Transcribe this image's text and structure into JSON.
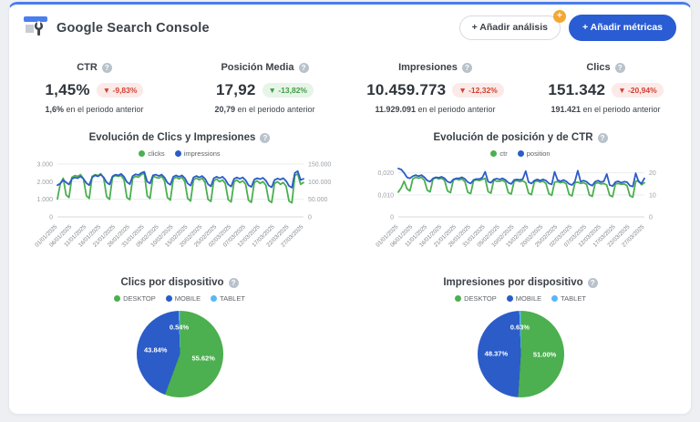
{
  "header": {
    "title": "Google Search Console",
    "add_analysis_label": "+ Añadir análisis",
    "add_analysis_badge": "+",
    "add_metrics_label": "+ Añadir métricas",
    "help_glyph": "?"
  },
  "colors": {
    "accent_blue": "#2a5cd3",
    "series_green": "#4caf50",
    "series_blue": "#2b5cc8",
    "series_light_blue": "#56b9f7",
    "badge_orange": "#f5a733"
  },
  "kpis": [
    {
      "label": "CTR",
      "value": "1,45%",
      "delta": "▼ -9,83%",
      "tone": "red",
      "prev": "1,6%",
      "prev_suffix": " en el periodo anterior"
    },
    {
      "label": "Posición Media",
      "value": "17,92",
      "delta": "▼ -13,82%",
      "tone": "green",
      "prev": "20,79",
      "prev_suffix": " en el periodo anterior"
    },
    {
      "label": "Impresiones",
      "value": "10.459.773",
      "delta": "▼ -12,32%",
      "tone": "red",
      "prev": "11.929.091",
      "prev_suffix": " en el periodo anterior"
    },
    {
      "label": "Clics",
      "value": "151.342",
      "delta": "▼ -20,94%",
      "tone": "red",
      "prev": "191.421",
      "prev_suffix": " en el periodo anterior"
    }
  ],
  "chart_data": [
    {
      "type": "line",
      "title": "Evolución de Clics y Impresiones",
      "x_tick_every": 5,
      "x_tick_labels": [
        "01/01/2025",
        "06/01/2025",
        "11/01/2025",
        "16/01/2025",
        "21/01/2025",
        "26/01/2025",
        "31/01/2025",
        "05/02/2025",
        "10/02/2025",
        "15/02/2025",
        "20/02/2025",
        "25/02/2025",
        "02/03/2025",
        "07/03/2025",
        "12/03/2025",
        "17/03/2025",
        "22/03/2025",
        "27/03/2025"
      ],
      "left_axis": {
        "max": 3000,
        "ticks": [
          {
            "v": 0,
            "l": "0"
          },
          {
            "v": 1000,
            "l": "1.000"
          },
          {
            "v": 2000,
            "l": "2.000"
          },
          {
            "v": 3000,
            "l": "3.000"
          }
        ]
      },
      "right_axis": {
        "max": 150000,
        "ticks": [
          {
            "v": 0,
            "l": "0"
          },
          {
            "v": 50000,
            "l": "50.000"
          },
          {
            "v": 100000,
            "l": "100.000"
          },
          {
            "v": 150000,
            "l": "150.000"
          }
        ]
      },
      "series": [
        {
          "name": "clicks",
          "color": "#4caf50",
          "axis": "left",
          "values": [
            1020,
            1900,
            2200,
            1250,
            1100,
            2250,
            2350,
            2300,
            2400,
            2150,
            1200,
            1050,
            2300,
            2400,
            2350,
            2450,
            2200,
            1150,
            1000,
            2250,
            2350,
            2300,
            2350,
            2100,
            1100,
            980,
            2200,
            2300,
            2250,
            2400,
            2500,
            1200,
            1050,
            2300,
            2250,
            2200,
            2300,
            2050,
            1100,
            950,
            2150,
            2250,
            2150,
            2250,
            2000,
            1050,
            900,
            2100,
            2200,
            2100,
            2200,
            1950,
            1000,
            880,
            2050,
            2150,
            2000,
            2100,
            1900,
            980,
            850,
            2000,
            2100,
            1950,
            2050,
            1850,
            950,
            830,
            1950,
            2050,
            1900,
            2000,
            1800,
            930,
            820,
            1900,
            2000,
            1850,
            1950,
            1750,
            900,
            800,
            2350,
            2450,
            1850,
            1950
          ]
        },
        {
          "name": "impressions",
          "color": "#2b5cc8",
          "axis": "right",
          "values": [
            90000,
            95000,
            105000,
            98000,
            92000,
            108000,
            112000,
            110000,
            115000,
            108000,
            96000,
            90000,
            112000,
            118000,
            115000,
            120000,
            112000,
            98000,
            92000,
            115000,
            120000,
            118000,
            122000,
            114000,
            99000,
            93000,
            116000,
            121000,
            119000,
            125000,
            128000,
            100000,
            95000,
            118000,
            120000,
            116000,
            120000,
            112000,
            97000,
            91000,
            114000,
            118000,
            114000,
            118000,
            110000,
            95000,
            89000,
            112000,
            116000,
            112000,
            116000,
            108000,
            93000,
            87000,
            110000,
            114000,
            110000,
            114000,
            106000,
            92000,
            86000,
            108000,
            112000,
            108000,
            112000,
            104000,
            90000,
            85000,
            106000,
            110000,
            107000,
            111000,
            103000,
            89000,
            84000,
            105000,
            109000,
            106000,
            110000,
            102000,
            88000,
            83000,
            125000,
            130000,
            105000,
            108000
          ]
        }
      ]
    },
    {
      "type": "line",
      "title": "Evolución de posición y de CTR",
      "x_tick_every": 5,
      "x_tick_labels": [
        "01/01/2025",
        "06/01/2025",
        "11/01/2025",
        "16/01/2025",
        "21/01/2025",
        "26/01/2025",
        "31/01/2025",
        "05/02/2025",
        "10/02/2025",
        "15/02/2025",
        "20/02/2025",
        "25/02/2025",
        "02/03/2025",
        "07/03/2025",
        "12/03/2025",
        "17/03/2025",
        "22/03/2025",
        "27/03/2025"
      ],
      "left_axis": {
        "max": 0.024,
        "ticks": [
          {
            "v": 0,
            "l": "0"
          },
          {
            "v": 0.01,
            "l": "0,010"
          },
          {
            "v": 0.02,
            "l": "0,020"
          }
        ]
      },
      "right_axis": {
        "max": 24,
        "ticks": [
          {
            "v": 0,
            "l": "0"
          },
          {
            "v": 10,
            "l": "10"
          },
          {
            "v": 20,
            "l": "20"
          }
        ]
      },
      "series": [
        {
          "name": "ctr",
          "color": "#4caf50",
          "axis": "left",
          "values": [
            0.0113,
            0.0132,
            0.0162,
            0.0128,
            0.0118,
            0.0172,
            0.018,
            0.0176,
            0.018,
            0.0166,
            0.0121,
            0.0114,
            0.0172,
            0.0178,
            0.0172,
            0.0176,
            0.0165,
            0.0118,
            0.011,
            0.0168,
            0.0172,
            0.0168,
            0.0172,
            0.016,
            0.0112,
            0.0106,
            0.0165,
            0.0168,
            0.0165,
            0.017,
            0.0175,
            0.0115,
            0.0108,
            0.0168,
            0.0162,
            0.0162,
            0.0166,
            0.0158,
            0.011,
            0.0104,
            0.0162,
            0.0165,
            0.016,
            0.0164,
            0.0155,
            0.0108,
            0.0101,
            0.016,
            0.0163,
            0.0158,
            0.0162,
            0.0152,
            0.0105,
            0.0098,
            0.0158,
            0.016,
            0.0155,
            0.0158,
            0.015,
            0.0102,
            0.0095,
            0.0155,
            0.0158,
            0.0152,
            0.0155,
            0.0148,
            0.01,
            0.0093,
            0.0152,
            0.0155,
            0.015,
            0.0152,
            0.0145,
            0.0098,
            0.0092,
            0.015,
            0.0152,
            0.0148,
            0.015,
            0.0142,
            0.0096,
            0.009,
            0.0162,
            0.0165,
            0.0146,
            0.0155
          ]
        },
        {
          "name": "position",
          "color": "#2b5cc8",
          "axis": "right",
          "values": [
            22.0,
            21.5,
            20.0,
            18.0,
            17.5,
            18.5,
            19.0,
            18.5,
            19.0,
            18.0,
            16.5,
            16.0,
            17.5,
            18.0,
            17.8,
            18.2,
            17.5,
            16.0,
            15.5,
            17.0,
            17.5,
            17.5,
            18.0,
            17.2,
            15.8,
            15.2,
            16.8,
            17.2,
            17.2,
            17.8,
            20.5,
            16.0,
            15.5,
            17.0,
            17.4,
            17.0,
            17.5,
            16.8,
            15.5,
            15.0,
            16.8,
            17.0,
            16.8,
            17.2,
            20.8,
            15.8,
            15.2,
            16.5,
            17.0,
            16.5,
            17.0,
            16.5,
            15.2,
            14.8,
            20.5,
            16.8,
            16.2,
            16.8,
            16.2,
            15.0,
            14.5,
            16.2,
            21.0,
            16.0,
            16.5,
            16.0,
            14.8,
            14.2,
            16.0,
            16.5,
            15.8,
            16.2,
            19.5,
            14.5,
            14.0,
            15.8,
            16.2,
            15.5,
            16.0,
            15.8,
            14.2,
            13.8,
            19.8,
            16.0,
            15.2,
            17.5
          ]
        }
      ]
    },
    {
      "type": "pie",
      "title": "Clics por dispositivo",
      "legend": [
        "DESKTOP",
        "MOBILE",
        "TABLET"
      ],
      "values": [
        55.62,
        43.84,
        0.54
      ],
      "value_labels": [
        "55.62%",
        "43.84%",
        "0.54%"
      ],
      "colors": [
        "#4caf50",
        "#2b5cc8",
        "#56b9f7"
      ]
    },
    {
      "type": "pie",
      "title": "Impresiones por dispositivo",
      "legend": [
        "DESKTOP",
        "MOBILE",
        "TABLET"
      ],
      "values": [
        51.0,
        48.37,
        0.63
      ],
      "value_labels": [
        "51.00%",
        "48.37%",
        "0.63%"
      ],
      "colors": [
        "#4caf50",
        "#2b5cc8",
        "#56b9f7"
      ]
    }
  ]
}
